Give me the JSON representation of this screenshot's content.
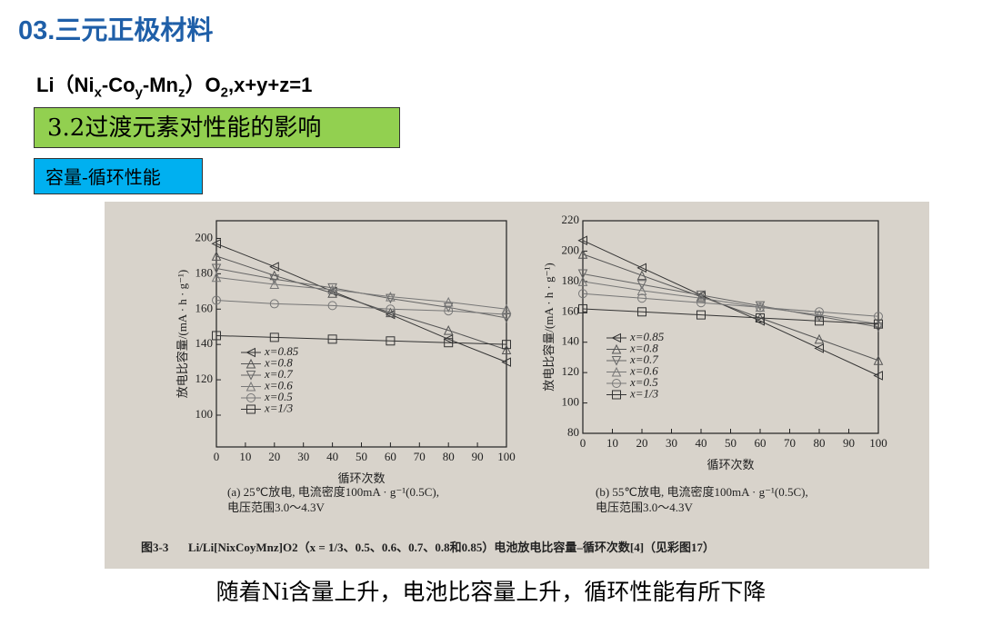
{
  "header": {
    "title": "03.三元正极材料",
    "formula": [
      "Li（Ni",
      "x",
      "-Co",
      "y",
      "-Mn",
      "z",
      "）O",
      "2",
      ",x+y+z=1"
    ]
  },
  "section": "3.2过渡元素对性能的影响",
  "subsection": "容量-循环性能",
  "figure_caption": {
    "number": "图3-3",
    "text": "Li/Li[NixCoyMnz]O2（x = 1/3、0.5、0.6、0.7、0.8和0.85）电池放电比容量–循环次数[4]（见彩图17）"
  },
  "conclusion": "随着Ni含量上升，电池比容量上升，循环性能有所下降",
  "chart_data": [
    {
      "type": "line",
      "xlabel": "循环次数",
      "ylabel": "放电比容量/(mA · h · g⁻¹)",
      "caption": [
        "(a) 25℃放电, 电流密度100mA · g⁻¹(0.5C),",
        "电压范围3.0～4.3V"
      ],
      "x": [
        0,
        20,
        40,
        60,
        80,
        100
      ],
      "xlim": [
        0,
        100
      ],
      "xticks": [
        0,
        10,
        20,
        30,
        40,
        50,
        60,
        70,
        80,
        90,
        100
      ],
      "ylim": [
        82,
        210
      ],
      "yticks": [
        100,
        120,
        140,
        160,
        180,
        200
      ],
      "series": [
        {
          "name": "x=0.85",
          "marker": "tri-left",
          "color": "#333333",
          "values": [
            197,
            184,
            170,
            157,
            143,
            130
          ]
        },
        {
          "name": "x=0.8",
          "marker": "tri-up",
          "color": "#555555",
          "values": [
            190,
            179,
            169,
            158,
            148,
            137
          ]
        },
        {
          "name": "x=0.7",
          "marker": "tri-down",
          "color": "#666666",
          "values": [
            183,
            177,
            172,
            166,
            161,
            155
          ]
        },
        {
          "name": "x=0.6",
          "marker": "tri-up",
          "color": "#777777",
          "values": [
            178,
            174,
            171,
            167,
            164,
            160
          ]
        },
        {
          "name": "x=0.5",
          "marker": "circle",
          "color": "#777777",
          "values": [
            165,
            163,
            162,
            160,
            159,
            157
          ]
        },
        {
          "name": "x=1/3",
          "marker": "square",
          "color": "#333333",
          "values": [
            145,
            144,
            143,
            142,
            141,
            140
          ]
        }
      ]
    },
    {
      "type": "line",
      "xlabel": "循环次数",
      "ylabel": "放电比容量/(mA · h · g⁻¹)",
      "caption": [
        "(b) 55℃放电, 电流密度100mA · g⁻¹(0.5C),",
        "电压范围3.0～4.3V"
      ],
      "x": [
        0,
        20,
        40,
        60,
        80,
        100
      ],
      "xlim": [
        0,
        100
      ],
      "xticks": [
        0,
        10,
        20,
        30,
        40,
        50,
        60,
        70,
        80,
        90,
        100
      ],
      "ylim": [
        80,
        220
      ],
      "yticks": [
        80,
        100,
        120,
        140,
        160,
        180,
        200,
        220
      ],
      "series": [
        {
          "name": "x=0.85",
          "marker": "tri-left",
          "color": "#333333",
          "values": [
            207,
            189,
            171,
            154,
            136,
            118
          ]
        },
        {
          "name": "x=0.8",
          "marker": "tri-up",
          "color": "#555555",
          "values": [
            198,
            184,
            170,
            156,
            142,
            128
          ]
        },
        {
          "name": "x=0.7",
          "marker": "tri-down",
          "color": "#666666",
          "values": [
            185,
            178,
            171,
            164,
            157,
            150
          ]
        },
        {
          "name": "x=0.6",
          "marker": "tri-up",
          "color": "#777777",
          "values": [
            180,
            174,
            169,
            163,
            158,
            152
          ]
        },
        {
          "name": "x=0.5",
          "marker": "circle",
          "color": "#777777",
          "values": [
            172,
            169,
            166,
            163,
            160,
            157
          ]
        },
        {
          "name": "x=1/3",
          "marker": "square",
          "color": "#333333",
          "values": [
            162,
            160,
            158,
            156,
            154,
            152
          ]
        }
      ]
    }
  ]
}
